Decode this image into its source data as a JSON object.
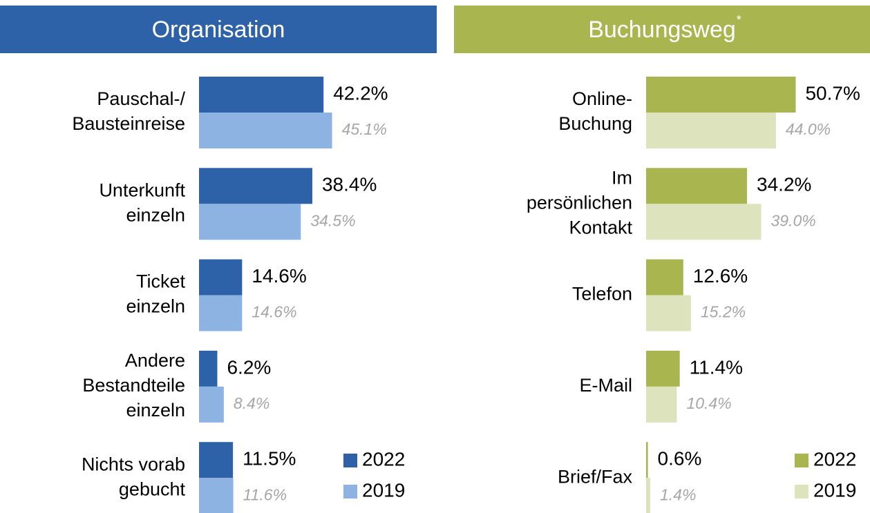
{
  "chart_data": [
    {
      "type": "bar",
      "orientation": "horizontal",
      "title": "Organisation",
      "title_color": "#2e62a8",
      "categories": [
        [
          "Pauschal-/",
          "Bausteinreise"
        ],
        [
          "Unterkunft",
          "einzeln"
        ],
        [
          "Ticket",
          "einzeln"
        ],
        [
          "Andere",
          "Bestandteile",
          "einzeln"
        ],
        [
          "Nichts vorab",
          "gebucht"
        ]
      ],
      "series": [
        {
          "name": "2022",
          "color": "#2e62a8",
          "values": [
            42.2,
            38.4,
            14.6,
            6.2,
            11.5
          ],
          "value_labels": [
            "42.2%",
            "38.4%",
            "14.6%",
            "6.2%",
            "11.5%"
          ]
        },
        {
          "name": "2019",
          "color": "#8db3e2",
          "values": [
            45.1,
            34.5,
            14.6,
            8.4,
            11.6
          ],
          "value_labels": [
            "45.1%",
            "34.5%",
            "14.6%",
            "8.4%",
            "11.6%"
          ]
        }
      ]
    },
    {
      "type": "bar",
      "orientation": "horizontal",
      "title": "Buchungsweg",
      "title_note": "*",
      "title_color": "#a9b64f",
      "categories": [
        [
          "Online-",
          "Buchung"
        ],
        [
          "Im",
          "persönlichen",
          "Kontakt"
        ],
        [
          "Telefon"
        ],
        [
          "E-Mail"
        ],
        [
          "Brief/Fax"
        ]
      ],
      "series": [
        {
          "name": "2022",
          "color": "#a9b64f",
          "values": [
            50.7,
            34.2,
            12.6,
            11.4,
            0.6
          ],
          "value_labels": [
            "50.7%",
            "34.2%",
            "12.6%",
            "11.4%",
            "0.6%"
          ]
        },
        {
          "name": "2019",
          "color": "#dde4bd",
          "values": [
            44.0,
            39.0,
            15.2,
            10.4,
            1.4
          ],
          "value_labels": [
            "44.0%",
            "39.0%",
            "15.2%",
            "10.4%",
            "1.4%"
          ]
        }
      ]
    }
  ]
}
